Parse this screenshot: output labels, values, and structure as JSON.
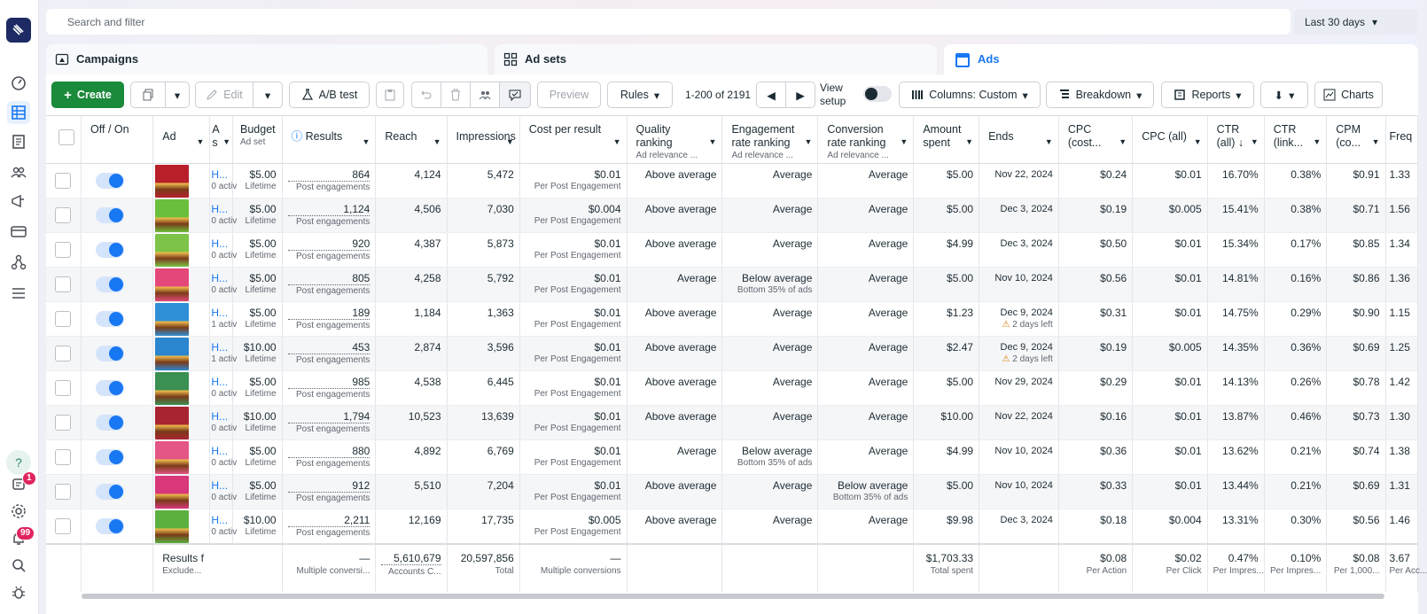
{
  "search": {
    "placeholder": "Search and filter"
  },
  "date_range": "Last 30 days",
  "tabs": [
    {
      "label": "Campaigns"
    },
    {
      "label": "Ad sets"
    },
    {
      "label": "Ads"
    }
  ],
  "toolbar": {
    "create": "Create",
    "edit": "Edit",
    "ab_test": "A/B test",
    "preview": "Preview",
    "rules": "Rules",
    "pagination": "1-200 of 2191",
    "view_setup": "View setup",
    "columns": "Columns: Custom",
    "breakdown": "Breakdown",
    "reports": "Reports",
    "charts": "Charts"
  },
  "notifications": {
    "help_badge": "1",
    "alerts_badge": "99"
  },
  "columns": [
    {
      "h": "Off / On",
      "sub": ""
    },
    {
      "h": "Ad",
      "sub": ""
    },
    {
      "h": "A s",
      "sub": ""
    },
    {
      "h": "Budget",
      "sub": "Ad set"
    },
    {
      "h": "Results",
      "sub": ""
    },
    {
      "h": "Reach",
      "sub": ""
    },
    {
      "h": "Impressions",
      "sub": ""
    },
    {
      "h": "Cost per result",
      "sub": ""
    },
    {
      "h": "Quality ranking",
      "sub": "Ad relevance ..."
    },
    {
      "h": "Engagement rate ranking",
      "sub": "Ad relevance ..."
    },
    {
      "h": "Conversion rate ranking",
      "sub": "Ad relevance ..."
    },
    {
      "h": "Amount spent",
      "sub": ""
    },
    {
      "h": "Ends",
      "sub": ""
    },
    {
      "h": "CPC (cost...",
      "sub": ""
    },
    {
      "h": "CPC (all)",
      "sub": ""
    },
    {
      "h": "CTR (all) ↓",
      "sub": ""
    },
    {
      "h": "CTR (link...",
      "sub": ""
    },
    {
      "h": "CPM (co...",
      "sub": ""
    },
    {
      "h": "Freq",
      "sub": ""
    }
  ],
  "rows": [
    {
      "name": "H...",
      "name_sub": "0 activ",
      "budget": "$5.00",
      "budget_sub": "Lifetime",
      "results": "864",
      "results_sub": "Post engagements",
      "reach": "4,124",
      "impressions": "5,472",
      "cpr": "$0.01",
      "cpr_sub": "Per Post Engagement",
      "quality": "Above average",
      "quality_sub": "",
      "engagement": "Average",
      "engagement_sub": "",
      "conversion": "Average",
      "conversion_sub": "",
      "spent": "$5.00",
      "ends": "Nov 22, 2024",
      "ends_sub": "",
      "cpc": "$0.24",
      "cpc_all": "$0.01",
      "ctr_all": "16.70%",
      "ctr_link": "0.38%",
      "cpm": "$0.91",
      "freq": "1.33",
      "thumb": "#b81f2b"
    },
    {
      "name": "H...",
      "name_sub": "0 activ",
      "budget": "$5.00",
      "budget_sub": "Lifetime",
      "results": "1,124",
      "results_sub": "Post engagements",
      "reach": "4,506",
      "impressions": "7,030",
      "cpr": "$0.004",
      "cpr_sub": "Per Post Engagement",
      "quality": "Above average",
      "quality_sub": "",
      "engagement": "Average",
      "engagement_sub": "",
      "conversion": "Average",
      "conversion_sub": "",
      "spent": "$5.00",
      "ends": "Dec 3, 2024",
      "ends_sub": "",
      "cpc": "$0.19",
      "cpc_all": "$0.005",
      "ctr_all": "15.41%",
      "ctr_link": "0.38%",
      "cpm": "$0.71",
      "freq": "1.56",
      "thumb": "#6cbf3c"
    },
    {
      "name": "H...",
      "name_sub": "0 activ",
      "budget": "$5.00",
      "budget_sub": "Lifetime",
      "results": "920",
      "results_sub": "Post engagements",
      "reach": "4,387",
      "impressions": "5,873",
      "cpr": "$0.01",
      "cpr_sub": "Per Post Engagement",
      "quality": "Above average",
      "quality_sub": "",
      "engagement": "Average",
      "engagement_sub": "",
      "conversion": "Average",
      "conversion_sub": "",
      "spent": "$4.99",
      "ends": "Dec 3, 2024",
      "ends_sub": "",
      "cpc": "$0.50",
      "cpc_all": "$0.01",
      "ctr_all": "15.34%",
      "ctr_link": "0.17%",
      "cpm": "$0.85",
      "freq": "1.34",
      "thumb": "#7cc347"
    },
    {
      "name": "H...",
      "name_sub": "0 activ",
      "budget": "$5.00",
      "budget_sub": "Lifetime",
      "results": "805",
      "results_sub": "Post engagements",
      "reach": "4,258",
      "impressions": "5,792",
      "cpr": "$0.01",
      "cpr_sub": "Per Post Engagement",
      "quality": "Average",
      "quality_sub": "",
      "engagement": "Below average",
      "engagement_sub": "Bottom 35% of ads",
      "conversion": "Average",
      "conversion_sub": "",
      "spent": "$5.00",
      "ends": "Nov 10, 2024",
      "ends_sub": "",
      "cpc": "$0.56",
      "cpc_all": "$0.01",
      "ctr_all": "14.81%",
      "ctr_link": "0.16%",
      "cpm": "$0.86",
      "freq": "1.36",
      "thumb": "#e4487a"
    },
    {
      "name": "H...",
      "name_sub": "1 activ",
      "budget": "$5.00",
      "budget_sub": "Lifetime",
      "results": "189",
      "results_sub": "Post engagements",
      "reach": "1,184",
      "impressions": "1,363",
      "cpr": "$0.01",
      "cpr_sub": "Per Post Engagement",
      "quality": "Above average",
      "quality_sub": "",
      "engagement": "Average",
      "engagement_sub": "",
      "conversion": "Average",
      "conversion_sub": "",
      "spent": "$1.23",
      "ends": "Dec 9, 2024",
      "ends_sub": "2 days left",
      "cpc": "$0.31",
      "cpc_all": "$0.01",
      "ctr_all": "14.75%",
      "ctr_link": "0.29%",
      "cpm": "$0.90",
      "freq": "1.15",
      "thumb": "#2e8fd6"
    },
    {
      "name": "H...",
      "name_sub": "1 activ",
      "budget": "$10.00",
      "budget_sub": "Lifetime",
      "results": "453",
      "results_sub": "Post engagements",
      "reach": "2,874",
      "impressions": "3,596",
      "cpr": "$0.01",
      "cpr_sub": "Per Post Engagement",
      "quality": "Above average",
      "quality_sub": "",
      "engagement": "Average",
      "engagement_sub": "",
      "conversion": "Average",
      "conversion_sub": "",
      "spent": "$2.47",
      "ends": "Dec 9, 2024",
      "ends_sub": "2 days left",
      "cpc": "$0.19",
      "cpc_all": "$0.005",
      "ctr_all": "14.35%",
      "ctr_link": "0.36%",
      "cpm": "$0.69",
      "freq": "1.25",
      "thumb": "#2a86cf"
    },
    {
      "name": "H...",
      "name_sub": "0 activ",
      "budget": "$5.00",
      "budget_sub": "Lifetime",
      "results": "985",
      "results_sub": "Post engagements",
      "reach": "4,538",
      "impressions": "6,445",
      "cpr": "$0.01",
      "cpr_sub": "Per Post Engagement",
      "quality": "Above average",
      "quality_sub": "",
      "engagement": "Average",
      "engagement_sub": "",
      "conversion": "Average",
      "conversion_sub": "",
      "spent": "$5.00",
      "ends": "Nov 29, 2024",
      "ends_sub": "",
      "cpc": "$0.29",
      "cpc_all": "$0.01",
      "ctr_all": "14.13%",
      "ctr_link": "0.26%",
      "cpm": "$0.78",
      "freq": "1.42",
      "thumb": "#3a8f52"
    },
    {
      "name": "H...",
      "name_sub": "0 activ",
      "budget": "$10.00",
      "budget_sub": "Lifetime",
      "results": "1,794",
      "results_sub": "Post engagements",
      "reach": "10,523",
      "impressions": "13,639",
      "cpr": "$0.01",
      "cpr_sub": "Per Post Engagement",
      "quality": "Above average",
      "quality_sub": "",
      "engagement": "Average",
      "engagement_sub": "",
      "conversion": "Average",
      "conversion_sub": "",
      "spent": "$10.00",
      "ends": "Nov 22, 2024",
      "ends_sub": "",
      "cpc": "$0.16",
      "cpc_all": "$0.01",
      "ctr_all": "13.87%",
      "ctr_link": "0.46%",
      "cpm": "$0.73",
      "freq": "1.30",
      "thumb": "#a8242f"
    },
    {
      "name": "H...",
      "name_sub": "0 activ",
      "budget": "$5.00",
      "budget_sub": "Lifetime",
      "results": "880",
      "results_sub": "Post engagements",
      "reach": "4,892",
      "impressions": "6,769",
      "cpr": "$0.01",
      "cpr_sub": "Per Post Engagement",
      "quality": "Average",
      "quality_sub": "",
      "engagement": "Below average",
      "engagement_sub": "Bottom 35% of ads",
      "conversion": "Average",
      "conversion_sub": "",
      "spent": "$4.99",
      "ends": "Nov 10, 2024",
      "ends_sub": "",
      "cpc": "$0.36",
      "cpc_all": "$0.01",
      "ctr_all": "13.62%",
      "ctr_link": "0.21%",
      "cpm": "$0.74",
      "freq": "1.38",
      "thumb": "#e35584"
    },
    {
      "name": "H...",
      "name_sub": "0 activ",
      "budget": "$5.00",
      "budget_sub": "Lifetime",
      "results": "912",
      "results_sub": "Post engagements",
      "reach": "5,510",
      "impressions": "7,204",
      "cpr": "$0.01",
      "cpr_sub": "Per Post Engagement",
      "quality": "Above average",
      "quality_sub": "",
      "engagement": "Average",
      "engagement_sub": "",
      "conversion": "Below average",
      "conversion_sub": "Bottom 35% of ads",
      "spent": "$5.00",
      "ends": "Nov 10, 2024",
      "ends_sub": "",
      "cpc": "$0.33",
      "cpc_all": "$0.01",
      "ctr_all": "13.44%",
      "ctr_link": "0.21%",
      "cpm": "$0.69",
      "freq": "1.31",
      "thumb": "#d8377a"
    },
    {
      "name": "H...",
      "name_sub": "0 activ",
      "budget": "$10.00",
      "budget_sub": "Lifetime",
      "results": "2,211",
      "results_sub": "Post engagements",
      "reach": "12,169",
      "impressions": "17,735",
      "cpr": "$0.005",
      "cpr_sub": "Per Post Engagement",
      "quality": "Above average",
      "quality_sub": "",
      "engagement": "Average",
      "engagement_sub": "",
      "conversion": "Average",
      "conversion_sub": "",
      "spent": "$9.98",
      "ends": "Dec 3, 2024",
      "ends_sub": "",
      "cpc": "$0.18",
      "cpc_all": "$0.004",
      "ctr_all": "13.31%",
      "ctr_link": "0.30%",
      "cpm": "$0.56",
      "freq": "1.46",
      "thumb": "#5cb040"
    }
  ],
  "totals": {
    "label": "Results f",
    "label_sub": "Exclude...",
    "results": "—",
    "results_sub": "Multiple conversi...",
    "reach": "5,610,679",
    "reach_sub": "Accounts C...",
    "impressions": "20,597,856",
    "impressions_sub": "Total",
    "cpr": "—",
    "cpr_sub": "Multiple conversions",
    "spent": "$1,703.33",
    "spent_sub": "Total spent",
    "cpc": "$0.08",
    "cpc_sub": "Per Action",
    "cpc_all": "$0.02",
    "cpc_all_sub": "Per Click",
    "ctr_all": "0.47%",
    "ctr_all_sub": "Per Impres...",
    "ctr_link": "0.10%",
    "ctr_link_sub": "Per Impres...",
    "cpm": "$0.08",
    "cpm_sub": "Per 1,000...",
    "freq": "3.67",
    "freq_sub": "Per Acc..."
  }
}
